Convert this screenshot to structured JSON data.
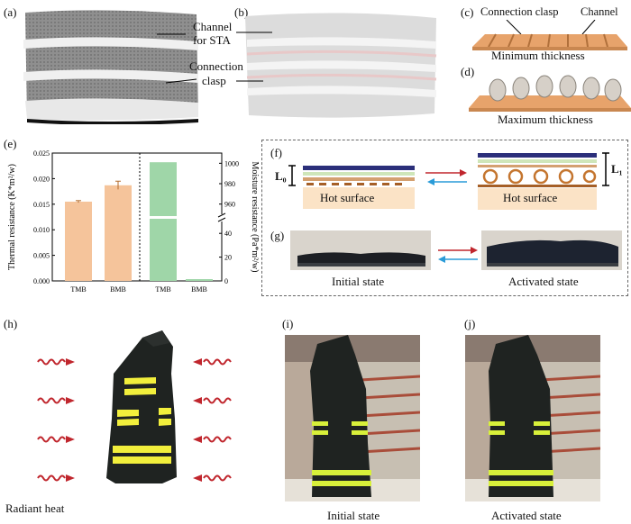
{
  "labels": {
    "a": "(a)",
    "b": "(b)",
    "c": "(c)",
    "d": "(d)",
    "e": "(e)",
    "f": "(f)",
    "g": "(g)",
    "h": "(h)",
    "i": "(i)",
    "j": "(j)"
  },
  "panel_a": {
    "channel_label": "Channel",
    "channel_label2": "for STA",
    "clasp_label": "Connection",
    "clasp_label2": "clasp"
  },
  "panel_c": {
    "connection_clasp": "Connection clasp",
    "channel": "Channel",
    "caption": "Minimum thickness"
  },
  "panel_d": {
    "caption": "Maximum thickness"
  },
  "chart_data": {
    "type": "bar",
    "categories": [
      "TMB",
      "BMB"
    ],
    "left": {
      "ylabel": "Thermal resistance (K*m²/w)",
      "ylim": [
        0,
        0.025
      ],
      "ticks": [
        "0.000",
        "0.005",
        "0.010",
        "0.015",
        "0.020",
        "0.025"
      ],
      "values": [
        0.0155,
        0.0187
      ],
      "errors": [
        0.0002,
        0.0008
      ],
      "color": "#f5c49b"
    },
    "right": {
      "ylabel": "Moisture resistance (Pa*m²/w)",
      "ticks_upper": [
        "960",
        "980",
        "1000"
      ],
      "ticks_lower": [
        "0",
        "20",
        "40"
      ],
      "values": [
        1001,
        1.5
      ],
      "color": "#9fd6a8"
    }
  },
  "panel_f": {
    "l0": "L₀",
    "l1": "L₁",
    "left_surface": "Hot surface",
    "right_surface": "Hot surface"
  },
  "panel_g": {
    "initial": "Initial state",
    "activated": "Activated state"
  },
  "panel_h": {
    "caption": "Radiant heat"
  },
  "panel_i": {
    "caption": "Initial state"
  },
  "panel_j": {
    "caption": "Activated state"
  },
  "colors": {
    "heat_arrow": "#c0262d",
    "stripe": "#f2ef3c",
    "jacket": "#1f2321"
  }
}
